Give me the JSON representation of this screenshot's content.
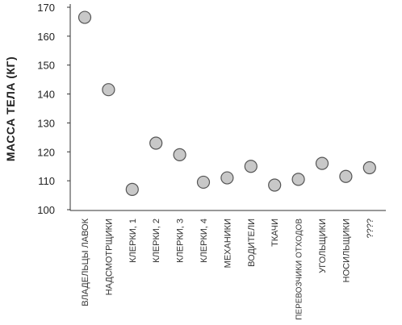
{
  "chart_data": {
    "type": "scatter",
    "title": "",
    "xlabel": "",
    "ylabel": "МАССА ТЕЛА (КГ)",
    "ylim": [
      100,
      170
    ],
    "yticks": [
      "100",
      "110",
      "120",
      "130",
      "140",
      "150",
      "160",
      "170"
    ],
    "grid": false,
    "categories": [
      "ВЛАДЕЛЬЦЫ ЛАВОК",
      "НАДСМОТРЩИКИ",
      "КЛЕРКИ, 1",
      "КЛЕРКИ, 2",
      "КЛЕРКИ, 3",
      "КЛЕРКИ, 4",
      "МЕХАНИКИ",
      "ВОДИТЕЛИ",
      "ТКАЧИ",
      "ПЕРЕВОЗЧИКИ ОТХОДОВ",
      "УГОЛЬЩИКИ",
      "НОСИЛЬЩИКИ",
      "????"
    ],
    "values": [
      166.5,
      141.5,
      107,
      123,
      119,
      109.5,
      111,
      115,
      108.5,
      110.5,
      116,
      111.5,
      114.5
    ],
    "colors": {
      "marker_fill": "#c8c8c8",
      "marker_stroke": "#555555",
      "axis": "#333333",
      "text": "#222222"
    }
  }
}
